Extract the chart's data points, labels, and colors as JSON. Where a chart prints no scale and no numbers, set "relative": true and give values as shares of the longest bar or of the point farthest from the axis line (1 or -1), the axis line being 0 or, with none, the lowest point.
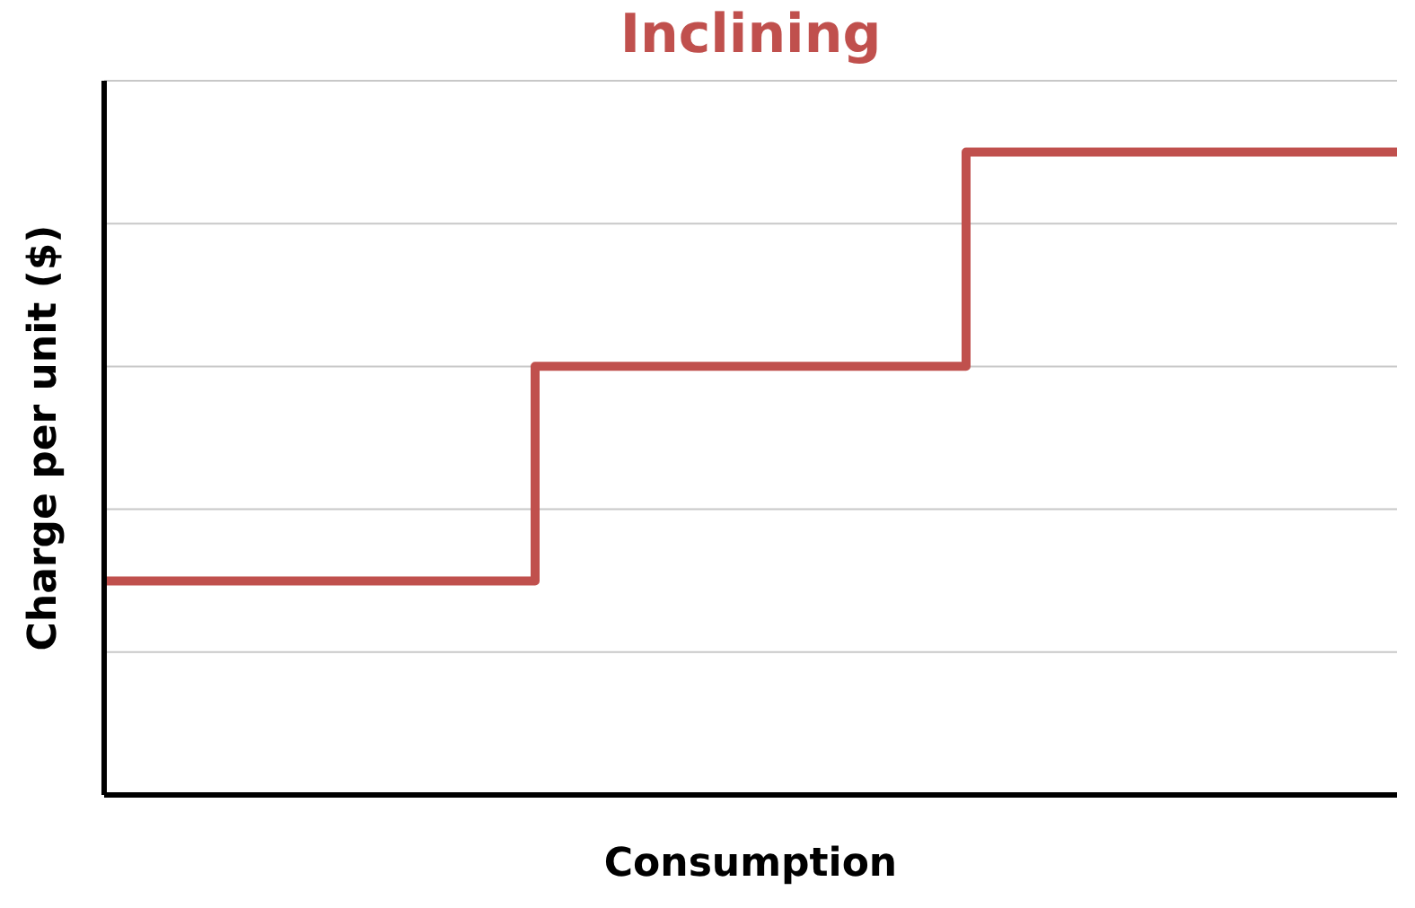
{
  "chart_data": {
    "type": "step",
    "title": "Inclining",
    "xlabel": "Consumption",
    "ylabel": "Charge per unit ($)",
    "categories": [
      null,
      null,
      null,
      null
    ],
    "series": [
      {
        "color": "#c0504d",
        "values": [
          0.333,
          0.667,
          1,
          1
        ]
      }
    ],
    "relative": true,
    "grid": "y",
    "marker": "none",
    "line_style": "solid"
  }
}
